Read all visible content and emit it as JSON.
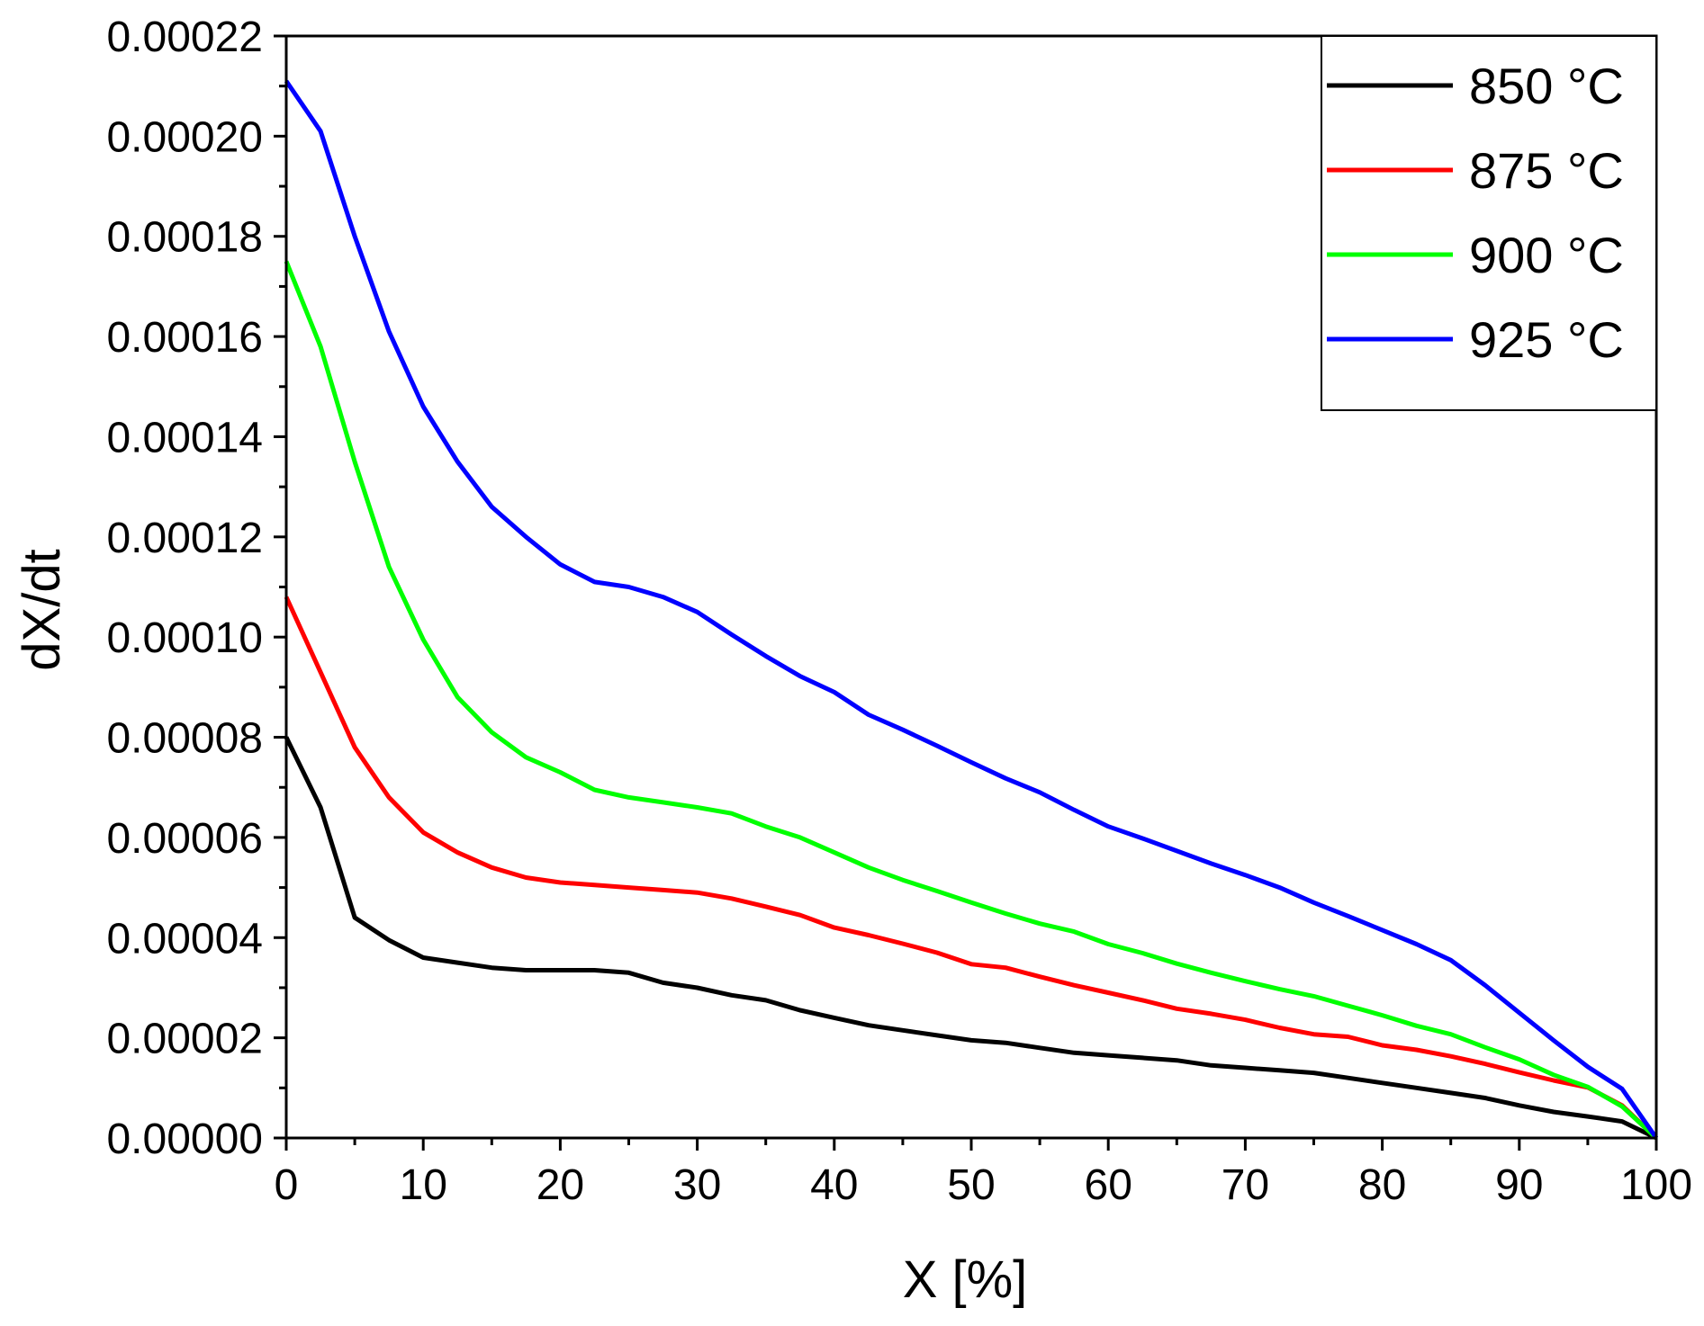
{
  "chart_data": {
    "type": "line",
    "title": "",
    "xlabel": "X [%]",
    "ylabel": "dX/dt",
    "xlim": [
      0,
      100
    ],
    "ylim": [
      0,
      0.00022
    ],
    "xticks": [
      0,
      10,
      20,
      30,
      40,
      50,
      60,
      70,
      80,
      90,
      100
    ],
    "xtick_labels": [
      "0",
      "10",
      "20",
      "30",
      "40",
      "50",
      "60",
      "70",
      "80",
      "90",
      "100"
    ],
    "yticks": [
      0,
      2e-05,
      4e-05,
      6e-05,
      8e-05,
      0.0001,
      0.00012,
      0.00014,
      0.00016,
      0.00018,
      0.0002,
      0.00022
    ],
    "ytick_labels": [
      "0.00000",
      "0.00002",
      "0.00004",
      "0.00006",
      "0.00008",
      "0.00010",
      "0.00012",
      "0.00014",
      "0.00016",
      "0.00018",
      "0.00020",
      "0.00022"
    ],
    "grid": false,
    "legend_position": "top-right",
    "x": [
      0,
      2.5,
      5,
      7.5,
      10,
      12.5,
      15,
      17.5,
      20,
      22.5,
      25,
      27.5,
      30,
      32.5,
      35,
      37.5,
      40,
      42.5,
      45,
      47.5,
      50,
      52.5,
      55,
      57.5,
      60,
      62.5,
      65,
      67.5,
      70,
      72.5,
      75,
      77.5,
      80,
      82.5,
      85,
      87.5,
      90,
      92.5,
      95,
      97.5,
      100
    ],
    "series": [
      {
        "name": "850 °C",
        "color": "#000000",
        "values": [
          8e-05,
          6.6e-05,
          4.4e-05,
          3.95e-05,
          3.6e-05,
          3.5e-05,
          3.4e-05,
          3.35e-05,
          3.35e-05,
          3.35e-05,
          3.3e-05,
          3.1e-05,
          3e-05,
          2.85e-05,
          2.75e-05,
          2.55e-05,
          2.4e-05,
          2.25e-05,
          2.15e-05,
          2.05e-05,
          1.95e-05,
          1.9e-05,
          1.8e-05,
          1.7e-05,
          1.65e-05,
          1.6e-05,
          1.55e-05,
          1.45e-05,
          1.4e-05,
          1.35e-05,
          1.3e-05,
          1.2e-05,
          1.1e-05,
          1e-05,
          9e-06,
          8e-06,
          6.5e-06,
          5.2e-06,
          4.3e-06,
          3.3e-06,
          0
        ]
      },
      {
        "name": "875 °C",
        "color": "#ff0000",
        "values": [
          0.000108,
          9.3e-05,
          7.8e-05,
          6.8e-05,
          6.1e-05,
          5.7e-05,
          5.4e-05,
          5.2e-05,
          5.1e-05,
          5.05e-05,
          5e-05,
          4.95e-05,
          4.9e-05,
          4.78e-05,
          4.62e-05,
          4.45e-05,
          4.2e-05,
          4.05e-05,
          3.88e-05,
          3.7e-05,
          3.47e-05,
          3.4e-05,
          3.22e-05,
          3.05e-05,
          2.9e-05,
          2.75e-05,
          2.58e-05,
          2.48e-05,
          2.36e-05,
          2.2e-05,
          2.07e-05,
          2.02e-05,
          1.85e-05,
          1.76e-05,
          1.63e-05,
          1.48e-05,
          1.31e-05,
          1.15e-05,
          1.01e-05,
          6.5e-06,
          0
        ]
      },
      {
        "name": "900 °C",
        "color": "#00ff00",
        "values": [
          0.000175,
          0.000158,
          0.000135,
          0.000114,
          9.95e-05,
          8.8e-05,
          8.1e-05,
          7.6e-05,
          7.3e-05,
          6.95e-05,
          6.8e-05,
          6.7e-05,
          6.6e-05,
          6.48e-05,
          6.22e-05,
          6e-05,
          5.7e-05,
          5.4e-05,
          5.15e-05,
          4.93e-05,
          4.7e-05,
          4.48e-05,
          4.28e-05,
          4.12e-05,
          3.87e-05,
          3.69e-05,
          3.48e-05,
          3.3e-05,
          3.13e-05,
          2.97e-05,
          2.83e-05,
          2.64e-05,
          2.45e-05,
          2.24e-05,
          2.07e-05,
          1.81e-05,
          1.57e-05,
          1.26e-05,
          1.02e-05,
          6.3e-06,
          0
        ]
      },
      {
        "name": "925 °C",
        "color": "#0000ff",
        "values": [
          0.000211,
          0.000201,
          0.00018,
          0.000161,
          0.000146,
          0.000135,
          0.000126,
          0.00012,
          0.0001145,
          0.000111,
          0.00011,
          0.000108,
          0.000105,
          0.0001005,
          9.62e-05,
          9.22e-05,
          8.9e-05,
          8.45e-05,
          8.15e-05,
          7.83e-05,
          7.5e-05,
          7.18e-05,
          6.9e-05,
          6.55e-05,
          6.22e-05,
          5.98e-05,
          5.73e-05,
          5.48e-05,
          5.25e-05,
          5e-05,
          4.7e-05,
          4.43e-05,
          4.15e-05,
          3.87e-05,
          3.55e-05,
          3.05e-05,
          2.5e-05,
          1.95e-05,
          1.42e-05,
          9.8e-06,
          0
        ]
      }
    ]
  }
}
